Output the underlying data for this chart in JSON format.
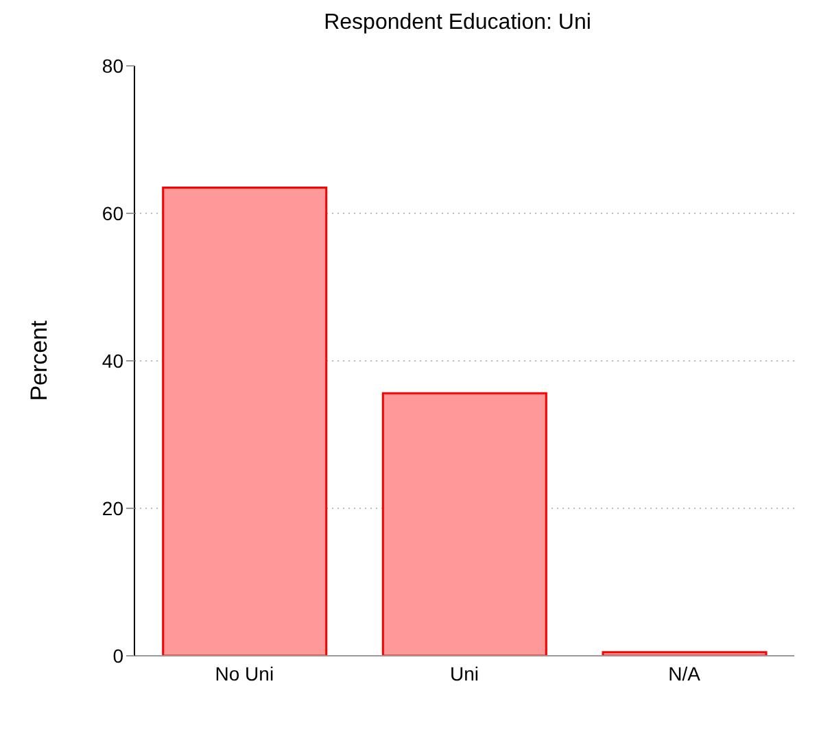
{
  "chart_data": {
    "type": "bar",
    "title": "Respondent Education: Uni",
    "ylabel": "Percent",
    "categories": [
      "No Uni",
      "Uni",
      "N/A"
    ],
    "values": [
      63.5,
      35.6,
      0.5
    ],
    "color": "#ff9999",
    "ylim": [
      0,
      80
    ],
    "yticks": [
      0,
      20,
      40,
      60,
      80
    ],
    "grid": "y",
    "legend": false
  }
}
